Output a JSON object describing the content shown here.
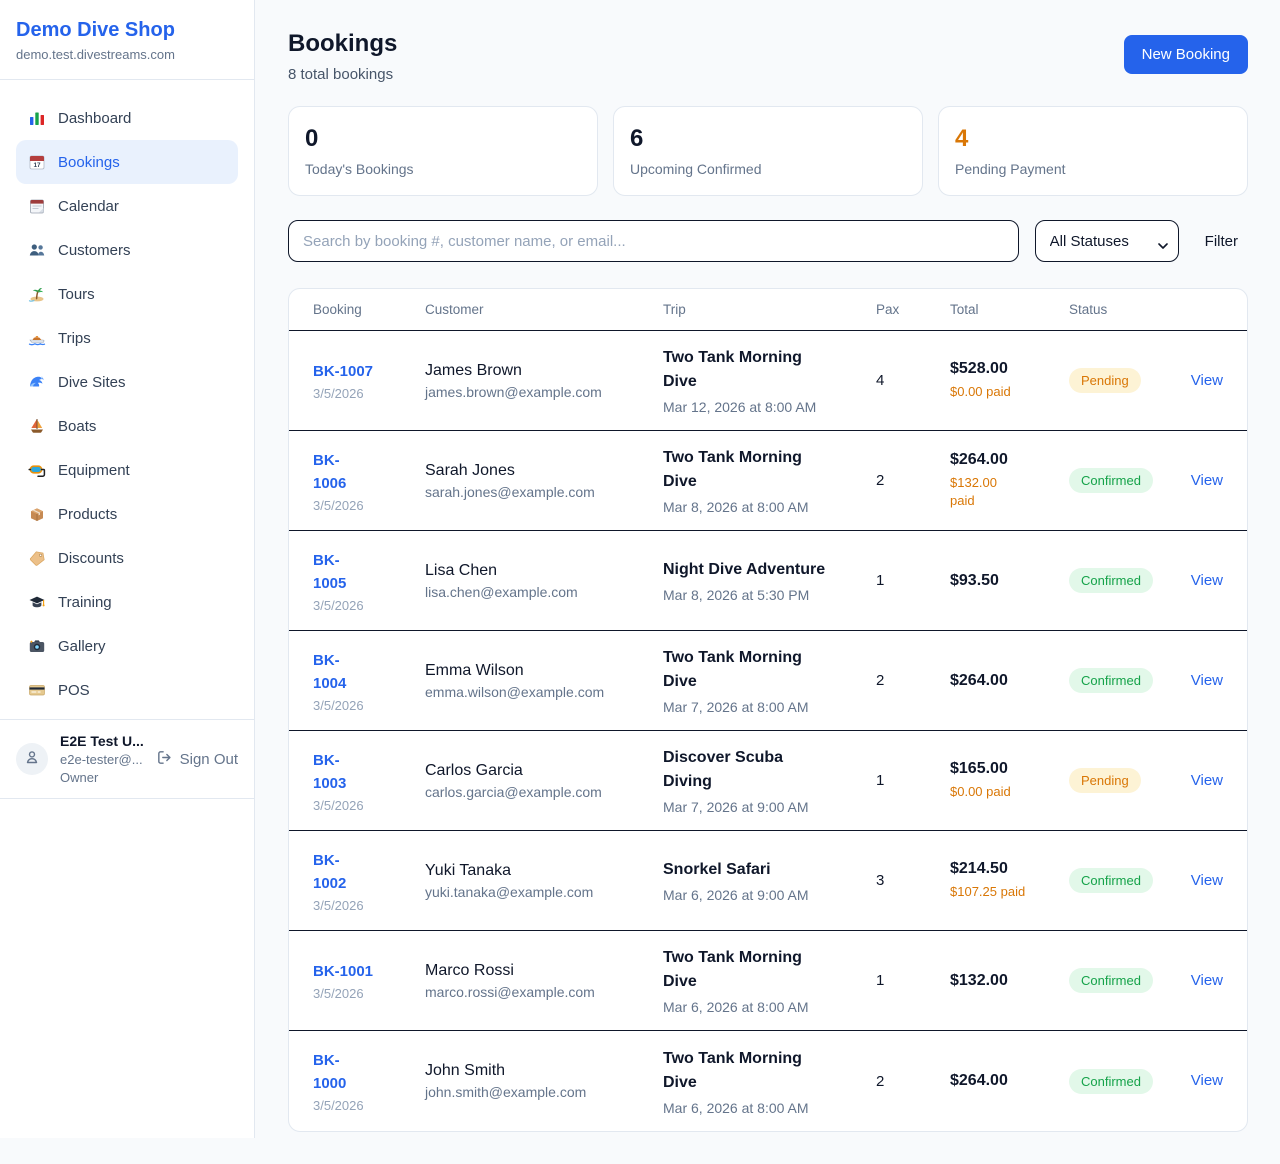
{
  "sidebar": {
    "brand": {
      "name": "Demo Dive Shop",
      "domain": "demo.test.divestreams.com"
    },
    "items": [
      {
        "label": "Dashboard",
        "icon": "dashboard-icon",
        "active": false
      },
      {
        "label": "Bookings",
        "icon": "bookings-calendar-icon",
        "active": true
      },
      {
        "label": "Calendar",
        "icon": "calendar-icon",
        "active": false
      },
      {
        "label": "Customers",
        "icon": "customers-icon",
        "active": false
      },
      {
        "label": "Tours",
        "icon": "tours-island-icon",
        "active": false
      },
      {
        "label": "Trips",
        "icon": "trips-speedboat-icon",
        "active": false
      },
      {
        "label": "Dive Sites",
        "icon": "dive-sites-wave-icon",
        "active": false
      },
      {
        "label": "Boats",
        "icon": "boats-sailboat-icon",
        "active": false
      },
      {
        "label": "Equipment",
        "icon": "equipment-mask-icon",
        "active": false
      },
      {
        "label": "Products",
        "icon": "products-box-icon",
        "active": false
      },
      {
        "label": "Discounts",
        "icon": "discounts-tag-icon",
        "active": false
      },
      {
        "label": "Training",
        "icon": "training-cap-icon",
        "active": false
      },
      {
        "label": "Gallery",
        "icon": "gallery-camera-icon",
        "active": false
      },
      {
        "label": "POS",
        "icon": "pos-card-icon",
        "active": false
      }
    ],
    "user": {
      "name": "E2E Test U...",
      "email": "e2e-tester@...",
      "role": "Owner",
      "signout_label": "Sign Out"
    }
  },
  "header": {
    "title": "Bookings",
    "subtitle": "8 total bookings",
    "new_booking_label": "New Booking"
  },
  "stats": [
    {
      "value": "0",
      "label": "Today's Bookings",
      "color": "#0f172a"
    },
    {
      "value": "6",
      "label": "Upcoming Confirmed",
      "color": "#0f172a"
    },
    {
      "value": "4",
      "label": "Pending Payment",
      "color": "#d97706"
    }
  ],
  "filters": {
    "search_placeholder": "Search by booking #, customer name, or email...",
    "status_selected": "All Statuses",
    "filter_label": "Filter"
  },
  "table": {
    "columns": [
      "Booking",
      "Customer",
      "Trip",
      "Pax",
      "Total",
      "Status"
    ],
    "rows": [
      {
        "id": "BK-1007",
        "date": "3/5/2026",
        "customer": "James Brown",
        "email": "james.brown@example.com",
        "trip": "Two Tank Morning\nDive",
        "datetime": "Mar 12, 2026 at 8:00 AM",
        "pax": "4",
        "total": "$528.00",
        "paid": "$0.00 paid",
        "status": "Pending",
        "view_label": "View"
      },
      {
        "id": "BK-\n1006",
        "date": "3/5/2026",
        "customer": "Sarah Jones",
        "email": "sarah.jones@example.com",
        "trip": "Two Tank Morning\nDive",
        "datetime": "Mar 8, 2026 at 8:00 AM",
        "pax": "2",
        "total": "$264.00",
        "paid": "$132.00\npaid",
        "status": "Confirmed",
        "view_label": "View"
      },
      {
        "id": "BK-\n1005",
        "date": "3/5/2026",
        "customer": "Lisa Chen",
        "email": "lisa.chen@example.com",
        "trip": "Night Dive Adventure",
        "datetime": "Mar 8, 2026 at 5:30 PM",
        "pax": "1",
        "total": "$93.50",
        "paid": "",
        "status": "Confirmed",
        "view_label": "View"
      },
      {
        "id": "BK-\n1004",
        "date": "3/5/2026",
        "customer": "Emma Wilson",
        "email": "emma.wilson@example.com",
        "trip": "Two Tank Morning\nDive",
        "datetime": "Mar 7, 2026 at 8:00 AM",
        "pax": "2",
        "total": "$264.00",
        "paid": "",
        "status": "Confirmed",
        "view_label": "View"
      },
      {
        "id": "BK-\n1003",
        "date": "3/5/2026",
        "customer": "Carlos Garcia",
        "email": "carlos.garcia@example.com",
        "trip": "Discover Scuba\nDiving",
        "datetime": "Mar 7, 2026 at 9:00 AM",
        "pax": "1",
        "total": "$165.00",
        "paid": "$0.00 paid",
        "status": "Pending",
        "view_label": "View"
      },
      {
        "id": "BK-\n1002",
        "date": "3/5/2026",
        "customer": "Yuki Tanaka",
        "email": "yuki.tanaka@example.com",
        "trip": "Snorkel Safari",
        "datetime": "Mar 6, 2026 at 9:00 AM",
        "pax": "3",
        "total": "$214.50",
        "paid": "$107.25 paid",
        "status": "Confirmed",
        "view_label": "View"
      },
      {
        "id": "BK-1001",
        "date": "3/5/2026",
        "customer": "Marco Rossi",
        "email": "marco.rossi@example.com",
        "trip": "Two Tank Morning\nDive",
        "datetime": "Mar 6, 2026 at 8:00 AM",
        "pax": "1",
        "total": "$132.00",
        "paid": "",
        "status": "Confirmed",
        "view_label": "View"
      },
      {
        "id": "BK-\n1000",
        "date": "3/5/2026",
        "customer": "John Smith",
        "email": "john.smith@example.com",
        "trip": "Two Tank Morning\nDive",
        "datetime": "Mar 6, 2026 at 8:00 AM",
        "pax": "2",
        "total": "$264.00",
        "paid": "",
        "status": "Confirmed",
        "view_label": "View"
      }
    ]
  },
  "colors": {
    "accent": "#2563eb",
    "pending_text": "#d97706",
    "pending_bg": "#fdf3d5",
    "confirmed_text": "#16a34a",
    "confirmed_bg": "#e2f8e9",
    "border_light": "#e2e8f0",
    "border_dark": "#0f172a",
    "page_bg": "#f8fafc"
  }
}
